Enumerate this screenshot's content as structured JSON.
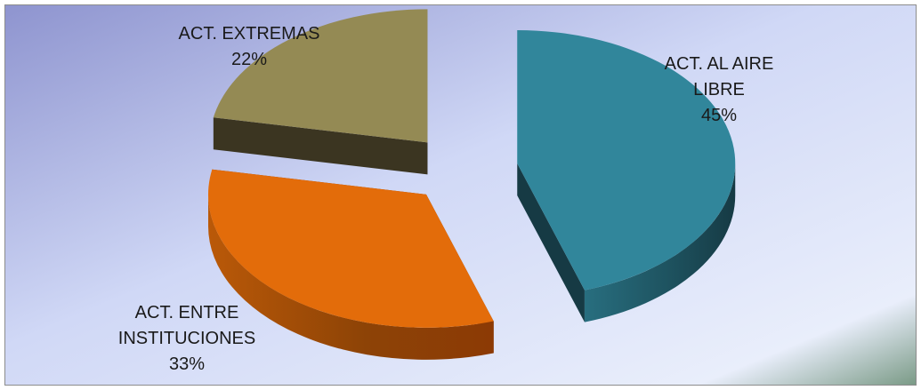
{
  "chart_data": {
    "type": "pie",
    "style": "3d-exploded",
    "title": "",
    "slices": [
      {
        "label_lines": [
          "ACT. AL AIRE",
          "LIBRE"
        ],
        "percent_label": "45%",
        "value": 45,
        "color": "#31869b",
        "side_color": "#163a44"
      },
      {
        "label_lines": [
          "ACT. ENTRE",
          "INSTITUCIONES"
        ],
        "percent_label": "33%",
        "value": 33,
        "color": "#e36c0a",
        "side_color": "#8c3a05"
      },
      {
        "label_lines": [
          "ACT. EXTREMAS"
        ],
        "percent_label": "22%",
        "value": 22,
        "color": "#948a54",
        "side_color": "#3b3521"
      }
    ],
    "legend": "none",
    "background": {
      "gradient_start": "#8e94cf",
      "gradient_mid": "#d0d8f6",
      "gradient_end": "#e9eefb",
      "corner_accent": "#7a9a86"
    }
  }
}
